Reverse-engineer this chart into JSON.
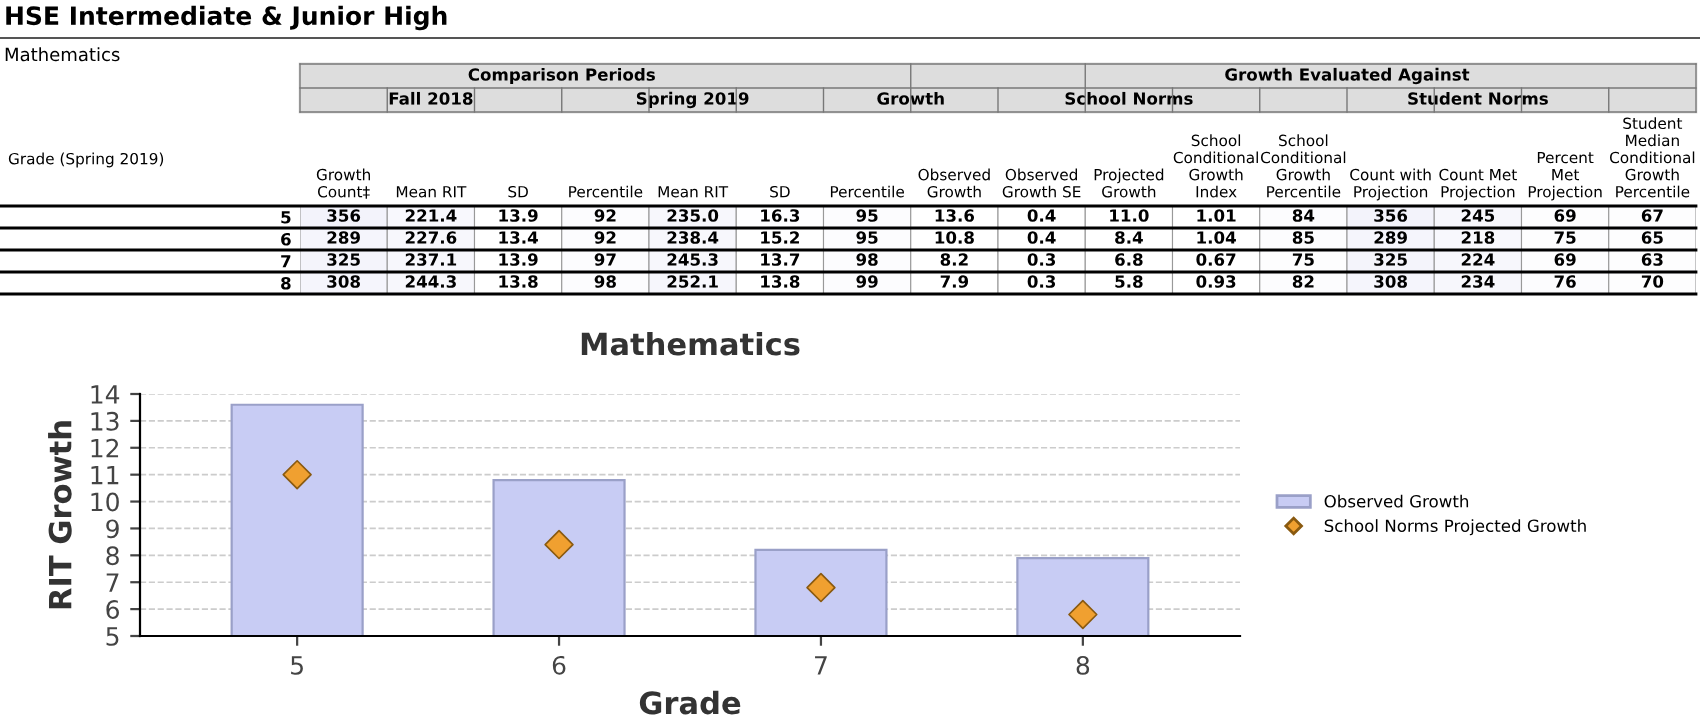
{
  "chart_data": [
    {
      "type": "heatmap",
      "title": "HSE Intermediate & Junior High",
      "ylabel": "Grade (Spring 2019)",
      "categories": [
        "Growth Count‡",
        "Mean RIT",
        "SD",
        "Percentile",
        "Mean RIT",
        "SD",
        "Percentile",
        "Observed Growth",
        "Observed Growth SE",
        "Projected Growth",
        "School Conditional Growth Index",
        "School Conditional Growth Percentile",
        "Count with Projection",
        "Count Met Projection",
        "Percent Met Projection",
        "Student Median Conditional Growth Percentile"
      ],
      "y_categories": [
        "5",
        "6",
        "7",
        "8"
      ],
      "cells": [
        [
          356,
          221.4,
          13.9,
          92,
          235.0,
          16.3,
          95,
          13.6,
          0.4,
          11.0,
          1.01,
          84,
          356,
          245,
          69,
          67
        ],
        [
          289,
          227.6,
          13.4,
          92,
          238.4,
          15.2,
          95,
          10.8,
          0.4,
          8.4,
          1.04,
          85,
          289,
          218,
          75,
          65
        ],
        [
          325,
          237.1,
          13.9,
          97,
          245.3,
          13.7,
          98,
          8.2,
          0.3,
          6.8,
          0.67,
          75,
          325,
          224,
          69,
          63
        ],
        [
          308,
          244.3,
          13.8,
          98,
          252.1,
          13.8,
          99,
          7.9,
          0.3,
          5.8,
          0.93,
          82,
          308,
          234,
          76,
          70
        ]
      ],
      "cell_labels": [
        [
          "356",
          "221.4",
          "13.9",
          "92",
          "235.0",
          "16.3",
          "95",
          "13.6",
          "0.4",
          "11.0",
          "1.01",
          "84",
          "356",
          "245",
          "69",
          "67"
        ],
        [
          "289",
          "227.6",
          "13.4",
          "92",
          "238.4",
          "15.2",
          "95",
          "10.8",
          "0.4",
          "8.4",
          "1.04",
          "85",
          "289",
          "218",
          "75",
          "65"
        ],
        [
          "325",
          "237.1",
          "13.9",
          "97",
          "245.3",
          "13.7",
          "98",
          "8.2",
          "0.3",
          "6.8",
          "0.67",
          "75",
          "325",
          "224",
          "69",
          "63"
        ],
        [
          "308",
          "244.3",
          "13.8",
          "98",
          "252.1",
          "13.8",
          "99",
          "7.9",
          "0.3",
          "5.8",
          "0.93",
          "82",
          "308",
          "234",
          "76",
          "70"
        ]
      ],
      "annotations": [
        "Comparison Periods",
        "Fall 2018",
        "Spring 2019",
        "Growth",
        "Growth Evaluated Against",
        "School Norms",
        "Student Norms",
        "Mathematics"
      ]
    },
    {
      "type": "bar",
      "title": "Mathematics",
      "xlabel": "Grade",
      "ylabel": "RIT Growth",
      "categories": [
        "5",
        "6",
        "7",
        "8"
      ],
      "series": [
        {
          "name": "Observed Growth",
          "type": "bar",
          "color": "#c8ccf4",
          "values": [
            13.6,
            10.8,
            8.2,
            7.9
          ]
        },
        {
          "name": "School Norms Projected Growth",
          "type": "scatter",
          "color": "#f0a030",
          "values": [
            11.0,
            8.4,
            6.8,
            5.8
          ]
        }
      ],
      "ylim": [
        5,
        14
      ],
      "yticks": [
        5,
        6,
        7,
        8,
        9,
        10,
        11,
        12,
        13,
        14
      ],
      "grid": "y",
      "legend": "right",
      "marker": "diamond"
    }
  ]
}
